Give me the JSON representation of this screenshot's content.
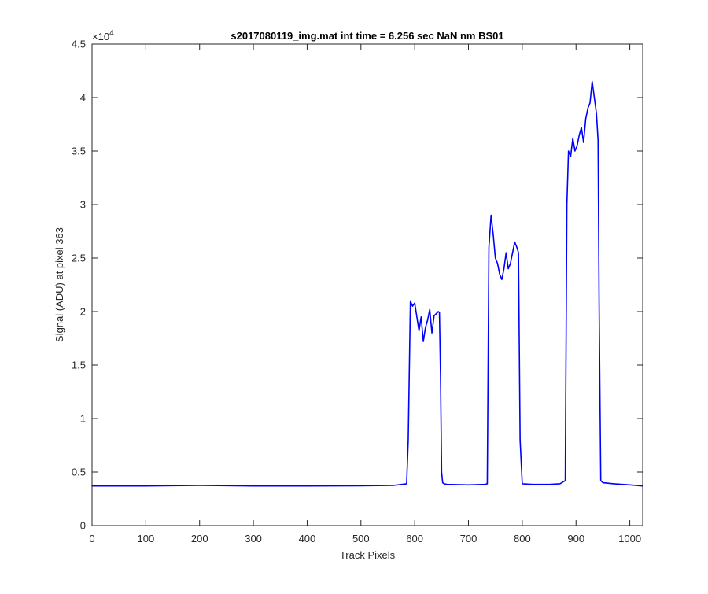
{
  "chart_data": {
    "type": "line",
    "title": "s2017080119_img.mat int time = 6.256 sec  NaN nm BS01",
    "xlabel": "Track Pixels",
    "ylabel": "Signal (ADU) at pixel 363",
    "y_exponent_label": "×10",
    "y_exponent_power": "4",
    "y_scale": 10000,
    "xlim": [
      0,
      1024
    ],
    "ylim": [
      0,
      45000
    ],
    "xticks": [
      0,
      100,
      200,
      300,
      400,
      500,
      600,
      700,
      800,
      900,
      1000
    ],
    "xtick_labels": [
      "0",
      "100",
      "200",
      "300",
      "400",
      "500",
      "600",
      "700",
      "800",
      "900",
      "1000"
    ],
    "yticks": [
      0,
      5000,
      10000,
      15000,
      20000,
      25000,
      30000,
      35000,
      40000,
      45000
    ],
    "ytick_labels": [
      "0",
      "0.5",
      "1",
      "1.5",
      "2",
      "2.5",
      "3",
      "3.5",
      "4",
      "4.5"
    ],
    "grid": false,
    "line_color": "#0000ff",
    "series": [
      {
        "x": [
          0,
          100,
          200,
          300,
          400,
          500,
          560,
          585,
          588,
          592,
          596,
          600,
          604,
          608,
          612,
          616,
          620,
          624,
          628,
          632,
          636,
          640,
          644,
          646,
          648,
          650,
          652,
          655,
          660,
          700,
          730,
          735,
          738,
          742,
          746,
          750,
          754,
          758,
          762,
          766,
          770,
          774,
          778,
          782,
          786,
          790,
          793,
          796,
          800,
          820,
          850,
          870,
          880,
          883,
          886,
          890,
          894,
          898,
          902,
          906,
          910,
          914,
          918,
          922,
          926,
          930,
          934,
          938,
          941,
          943,
          946,
          950,
          970,
          1000,
          1024
        ],
        "y": [
          3700,
          3700,
          3750,
          3700,
          3700,
          3720,
          3750,
          3900,
          8000,
          21000,
          20500,
          20800,
          19500,
          18200,
          19500,
          17200,
          18500,
          19200,
          20200,
          18000,
          19600,
          19800,
          20000,
          19900,
          14000,
          5000,
          4000,
          3900,
          3850,
          3800,
          3850,
          3900,
          26000,
          29000,
          27200,
          25000,
          24500,
          23500,
          23000,
          24000,
          25500,
          24000,
          24500,
          25500,
          26500,
          26000,
          25500,
          8000,
          3900,
          3850,
          3850,
          3900,
          4200,
          30000,
          35000,
          34500,
          36200,
          35000,
          35500,
          36500,
          37200,
          35800,
          38000,
          39000,
          39500,
          41500,
          40000,
          38500,
          36000,
          20000,
          4200,
          4000,
          3900,
          3800,
          3700
        ]
      }
    ]
  }
}
